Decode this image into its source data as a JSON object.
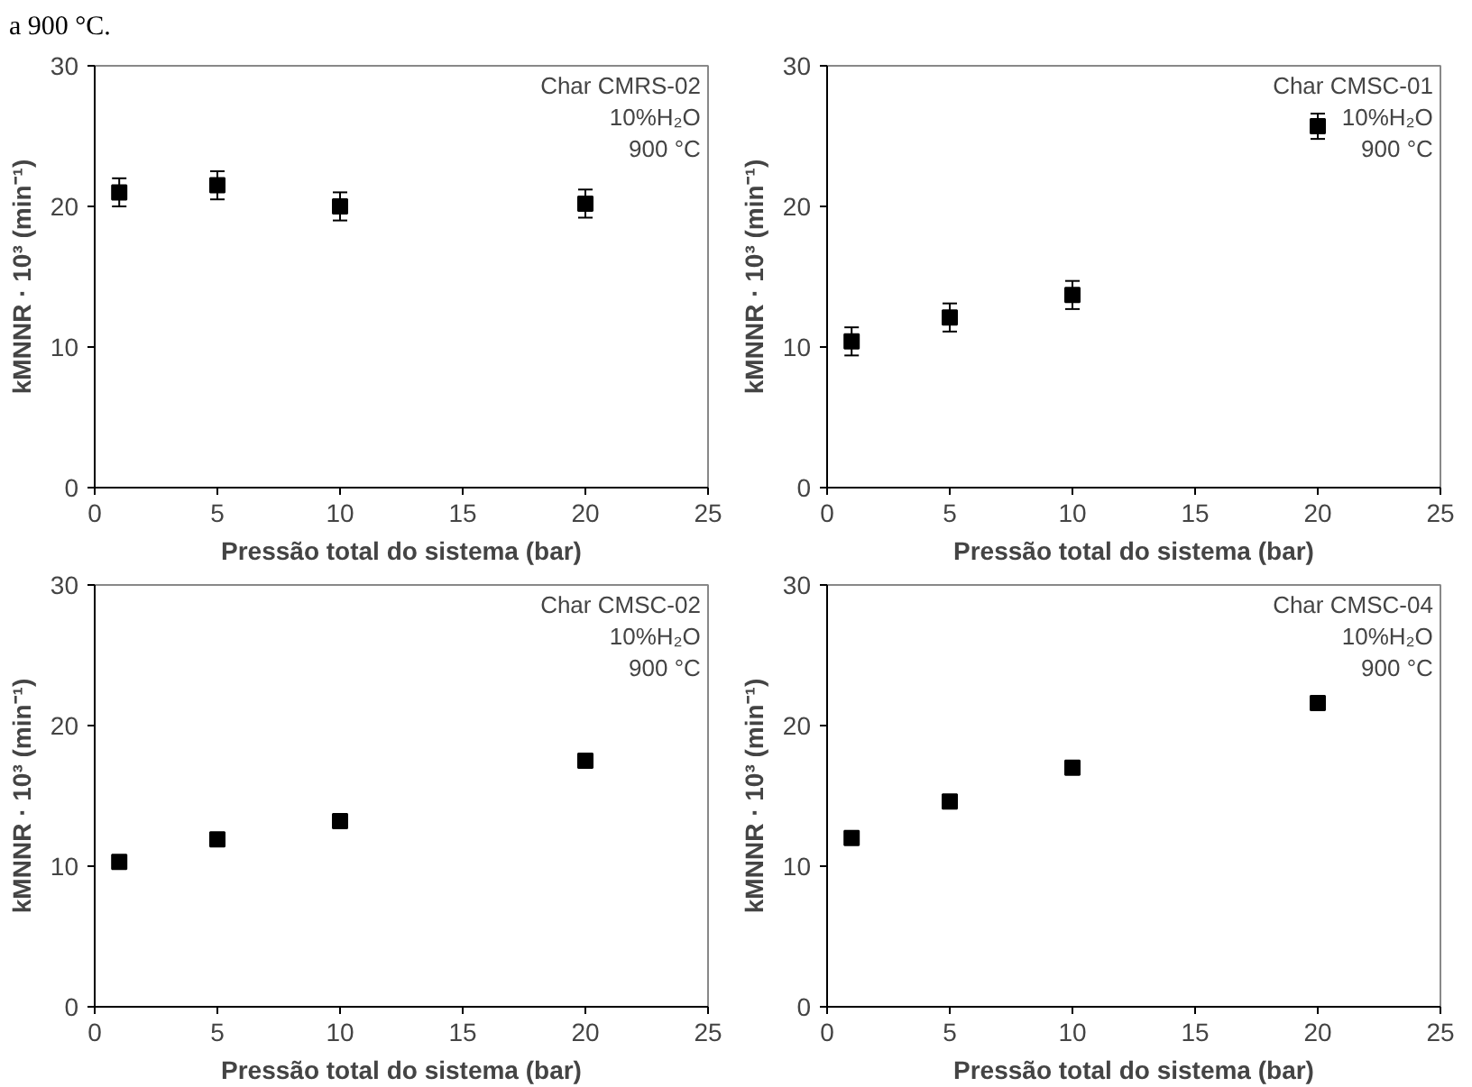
{
  "chart_data": [
    {
      "type": "scatter",
      "x": [
        1,
        5,
        10,
        20
      ],
      "values": [
        21,
        21.5,
        20,
        20.2
      ],
      "errors": [
        1,
        1,
        1,
        1
      ],
      "color": "#000000",
      "marker": "square",
      "xlim": [
        0,
        25
      ],
      "xticks": [
        0,
        5,
        10,
        15,
        20,
        25
      ],
      "ylim": [
        0,
        30
      ],
      "yticks": [
        0,
        10,
        20,
        30
      ],
      "xlabel": "Pressão total do sistema (bar)",
      "ylabel": "kMNNR · 10³ (min⁻¹)",
      "grid": false,
      "annotations": [
        "a 900 °C.",
        "Char CMRS-02",
        "10%H₂O",
        "900 °C"
      ]
    },
    {
      "type": "scatter",
      "x": [
        1,
        5,
        10,
        20
      ],
      "values": [
        10.4,
        12.1,
        13.7,
        25.7
      ],
      "errors": [
        1,
        1,
        1,
        0.9
      ],
      "color": "#000000",
      "marker": "square",
      "xlim": [
        0,
        25
      ],
      "xticks": [
        0,
        5,
        10,
        15,
        20,
        25
      ],
      "ylim": [
        0,
        30
      ],
      "yticks": [
        0,
        10,
        20,
        30
      ],
      "xlabel": "Pressão total do sistema (bar)",
      "ylabel": "kMNNR · 10³ (min⁻¹)",
      "grid": false,
      "annotations": [
        "Char CMSC-01",
        "10%H₂O",
        "900 °C"
      ]
    },
    {
      "type": "scatter",
      "x": [
        1,
        5,
        10,
        20
      ],
      "values": [
        10.3,
        11.9,
        13.2,
        17.5
      ],
      "errors": [
        0.4,
        0.4,
        0.4,
        0.4
      ],
      "color": "#000000",
      "marker": "square",
      "xlim": [
        0,
        25
      ],
      "xticks": [
        0,
        5,
        10,
        15,
        20,
        25
      ],
      "ylim": [
        0,
        30
      ],
      "yticks": [
        0,
        10,
        20,
        30
      ],
      "xlabel": "Pressão total do sistema (bar)",
      "ylabel": "kMNNR · 10³ (min⁻¹)",
      "grid": false,
      "annotations": [
        "Char CMSC-02",
        "10%H₂O",
        "900 °C"
      ]
    },
    {
      "type": "scatter",
      "x": [
        1,
        5,
        10,
        20
      ],
      "values": [
        12,
        14.6,
        17,
        21.6
      ],
      "errors": [
        0.3,
        0.3,
        0.3,
        0.3
      ],
      "color": "#000000",
      "marker": "square",
      "xlim": [
        0,
        25
      ],
      "xticks": [
        0,
        5,
        10,
        15,
        20,
        25
      ],
      "ylim": [
        0,
        30
      ],
      "yticks": [
        0,
        10,
        20,
        30
      ],
      "xlabel": "Pressão total do sistema (bar)",
      "ylabel": "kMNNR · 10³ (min⁻¹)",
      "grid": false,
      "annotations": [
        "Char CMSC-04",
        "10%H₂O",
        "900 °C"
      ]
    }
  ]
}
